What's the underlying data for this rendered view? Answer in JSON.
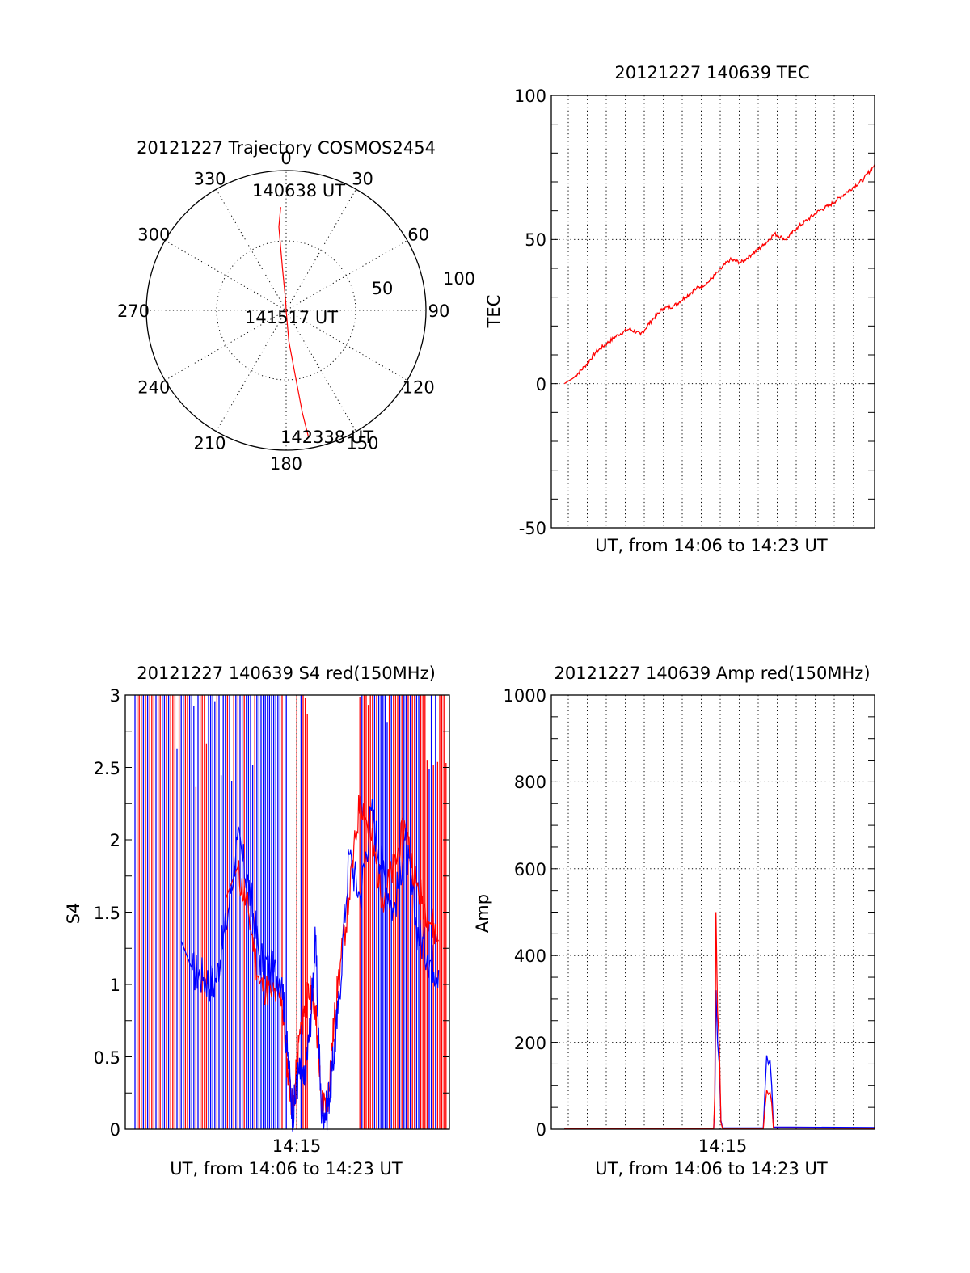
{
  "colors": {
    "red": "#ff0000",
    "blue": "#0000ff",
    "axis": "#000000",
    "background": "#ffffff"
  },
  "chart_data": [
    {
      "type": "scatter",
      "title": "20121227 Trajectory COSMOS2454",
      "projection": "polar",
      "azimuth_labels": [
        "0",
        "30",
        "60",
        "90",
        "120",
        "150",
        "180",
        "210",
        "240",
        "270",
        "300",
        "330"
      ],
      "radius_labels": [
        "50",
        "100"
      ],
      "series": [
        {
          "points": [
            [
              -3,
              74
            ],
            [
              -5,
              60
            ],
            [
              -5,
              30
            ],
            [
              -3,
              6
            ],
            [
              0,
              0
            ],
            [
              175,
              22
            ],
            [
              172,
              48
            ],
            [
              171,
              74
            ],
            [
              170,
              92
            ]
          ]
        }
      ],
      "annotations": [
        "140638 UT",
        "141517 UT",
        "142338 UT"
      ]
    },
    {
      "type": "line",
      "title": "20121227 140639 TEC",
      "xlabel": "UT, from 14:06 to 14:23 UT",
      "ylabel": "TEC",
      "ylim": [
        -50,
        100
      ],
      "yticks": [
        "-50",
        "0",
        "50",
        "100"
      ],
      "xlim": [
        14.1,
        14.3897
      ],
      "grid": true,
      "series": [
        {
          "x": [
            14.1117,
            14.12,
            14.13,
            14.14,
            14.15,
            14.16,
            14.17,
            14.18,
            14.19,
            14.2,
            14.21,
            14.22,
            14.23,
            14.24,
            14.25,
            14.26,
            14.27,
            14.28,
            14.29,
            14.3,
            14.31,
            14.32,
            14.33,
            14.34,
            14.35,
            14.36,
            14.37,
            14.38,
            14.3897
          ],
          "y": [
            0,
            2,
            6,
            11,
            14,
            17,
            19,
            17,
            22,
            26,
            27,
            30,
            33,
            35,
            39,
            43,
            42,
            45,
            48,
            52,
            50,
            54,
            57,
            60,
            62,
            65,
            68,
            71,
            76
          ]
        }
      ]
    },
    {
      "type": "line",
      "title": "20121227 140639 S4 red(150MHz)",
      "xlabel": "UT, from 14:06 to 14:23 UT",
      "ylabel": "S4",
      "ylim": [
        0,
        3
      ],
      "yticks": [
        "0",
        "0.5",
        "1",
        "1.5",
        "2",
        "2.5",
        "3"
      ],
      "xtick_label": "14:15",
      "xlim": [
        14.1,
        14.3897
      ],
      "series": [
        {
          "color": "red",
          "x": [
            14.19,
            14.2,
            14.21,
            14.22,
            14.23,
            14.24,
            14.245,
            14.25,
            14.255,
            14.26,
            14.265,
            14.27,
            14.275,
            14.28,
            14.285,
            14.29,
            14.3,
            14.31,
            14.32,
            14.33,
            14.34,
            14.35,
            14.36,
            14.37,
            14.38
          ],
          "y": [
            1.6,
            1.8,
            1.5,
            1.0,
            0.95,
            0.9,
            0.4,
            0.12,
            0.6,
            0.85,
            0.95,
            0.85,
            0.2,
            0.12,
            0.6,
            1.0,
            1.6,
            2.3,
            2.0,
            1.6,
            1.8,
            2.1,
            1.7,
            1.5,
            1.3
          ]
        },
        {
          "color": "blue",
          "x": [
            14.15,
            14.16,
            14.17,
            14.18,
            14.19,
            14.2,
            14.21,
            14.22,
            14.23,
            14.24,
            14.245,
            14.25,
            14.255,
            14.26,
            14.265,
            14.27,
            14.275,
            14.28,
            14.285,
            14.29,
            14.3,
            14.31,
            14.32,
            14.33,
            14.34,
            14.35,
            14.36,
            14.37,
            14.38
          ],
          "y": [
            1.3,
            1.1,
            1.05,
            1.0,
            1.4,
            2.0,
            1.7,
            1.2,
            1.1,
            1.05,
            0.5,
            0.1,
            0.4,
            0.3,
            0.7,
            1.3,
            0.15,
            0.12,
            0.4,
            0.8,
            1.9,
            1.6,
            2.2,
            1.8,
            1.5,
            2.0,
            1.4,
            1.2,
            1.1
          ]
        }
      ]
    },
    {
      "type": "line",
      "title": "20121227 140639 Amp red(150MHz)",
      "xlabel": "UT, from 14:06 to 14:23 UT",
      "ylabel": "Amp",
      "ylim": [
        0,
        1000
      ],
      "yticks": [
        "0",
        "200",
        "400",
        "600",
        "800",
        "1000"
      ],
      "xtick_label": "14:15",
      "xlim": [
        14.1,
        14.3897
      ],
      "grid": true,
      "series": [
        {
          "color": "blue",
          "x": [
            14.1117,
            14.2,
            14.2455,
            14.2465,
            14.2475,
            14.249,
            14.2505,
            14.252,
            14.2535,
            14.29,
            14.2915,
            14.293,
            14.2945,
            14.296,
            14.2975,
            14.299,
            14.3897
          ],
          "y": [
            2,
            2,
            2,
            60,
            320,
            200,
            150,
            20,
            3,
            3,
            90,
            170,
            150,
            160,
            100,
            5,
            4
          ]
        },
        {
          "color": "red",
          "x": [
            14.1117,
            14.2,
            14.2455,
            14.2465,
            14.2475,
            14.249,
            14.2505,
            14.252,
            14.2535,
            14.29,
            14.2915,
            14.293,
            14.2945,
            14.296,
            14.2975,
            14.299,
            14.3897
          ],
          "y": [
            1,
            1,
            1,
            80,
            500,
            270,
            200,
            15,
            2,
            2,
            50,
            90,
            80,
            85,
            60,
            3,
            2
          ]
        }
      ]
    }
  ]
}
